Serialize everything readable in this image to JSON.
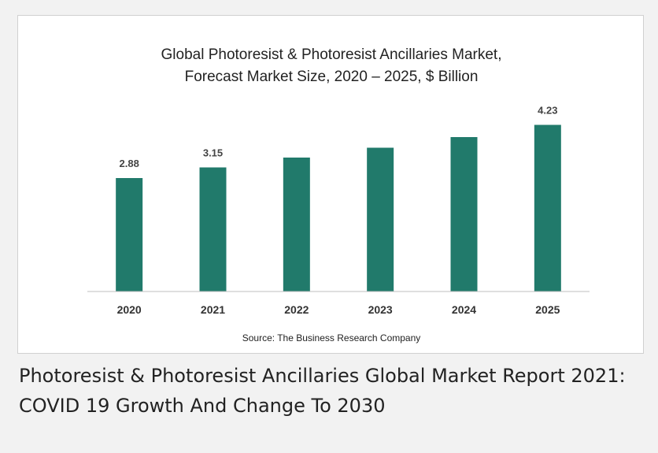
{
  "chart_data": {
    "type": "bar",
    "title_lines": [
      "Global Photoresist & Photoresist Ancillaries Market,",
      "Forecast Market Size, 2020 – 2025, $ Billion"
    ],
    "categories": [
      "2020",
      "2021",
      "2022",
      "2023",
      "2024",
      "2025"
    ],
    "values": [
      2.88,
      3.15,
      3.4,
      3.65,
      3.92,
      4.23
    ],
    "data_labels": [
      "2.88",
      "3.15",
      "",
      "",
      "",
      "4.23"
    ],
    "source": "Source: The Business Research Company",
    "ylim": [
      0,
      4.7
    ],
    "grid": false,
    "bar_color": "#217a6b"
  },
  "caption": "Photoresist & Photoresist Ancillaries Global Market Report 2021: COVID 19 Growth And Change To 2030"
}
